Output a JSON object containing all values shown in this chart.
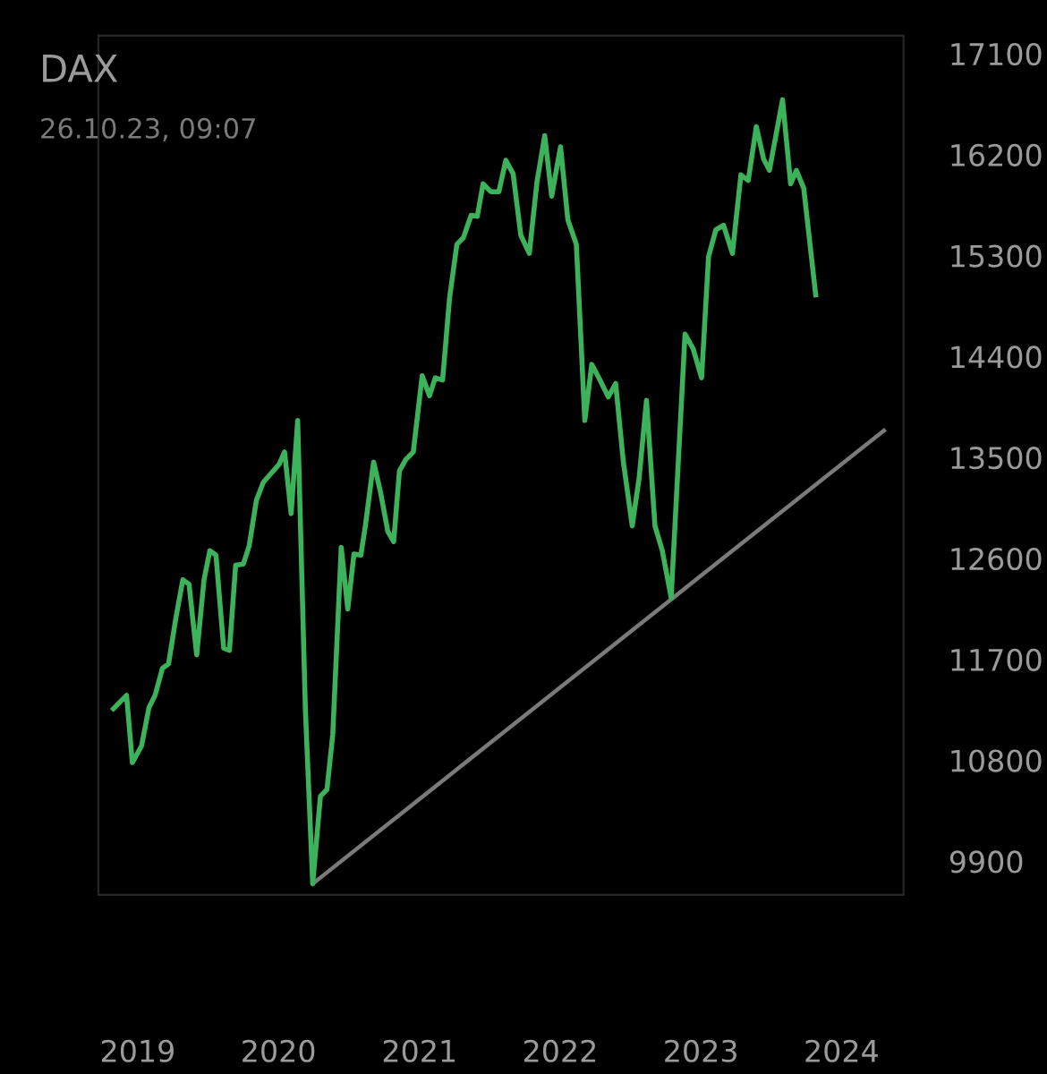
{
  "chart_data": {
    "type": "line",
    "title": "DAX",
    "subtitle": "26.10.23, 09:07",
    "x": [
      "2018-10-30",
      "2018-12-03",
      "2018-12-18",
      "2019-01-11",
      "2019-01-30",
      "2019-02-15",
      "2019-03-06",
      "2019-03-22",
      "2019-04-10",
      "2019-04-28",
      "2019-05-14",
      "2019-06-03",
      "2019-06-22",
      "2019-07-07",
      "2019-07-23",
      "2019-08-12",
      "2019-08-27",
      "2019-09-12",
      "2019-10-02",
      "2019-10-17",
      "2019-11-05",
      "2019-11-23",
      "2020-01-03",
      "2020-01-17",
      "2020-02-03",
      "2020-02-20",
      "2020-03-11",
      "2020-03-30",
      "2020-04-19",
      "2020-05-06",
      "2020-05-21",
      "2020-06-12",
      "2020-06-29",
      "2020-07-15",
      "2020-08-02",
      "2020-08-14",
      "2020-09-04",
      "2020-09-22",
      "2020-10-11",
      "2020-10-26",
      "2020-11-10",
      "2020-11-26",
      "2020-12-16",
      "2021-01-08",
      "2021-01-27",
      "2021-02-11",
      "2021-03-02",
      "2021-03-20",
      "2021-04-08",
      "2021-04-25",
      "2021-05-15",
      "2021-05-31",
      "2021-06-15",
      "2021-07-05",
      "2021-07-26",
      "2021-08-13",
      "2021-09-01",
      "2021-09-21",
      "2021-10-13",
      "2021-11-02",
      "2021-11-22",
      "2021-12-10",
      "2022-01-02",
      "2022-01-21",
      "2022-02-12",
      "2022-03-06",
      "2022-03-24",
      "2022-04-13",
      "2022-05-06",
      "2022-05-25",
      "2022-06-14",
      "2022-07-07",
      "2022-07-25",
      "2022-08-13",
      "2022-09-04",
      "2022-09-23",
      "2022-10-16",
      "2022-11-21",
      "2022-12-12",
      "2023-01-03",
      "2023-01-21",
      "2023-02-09",
      "2023-03-01",
      "2023-03-24",
      "2023-04-15",
      "2023-05-04",
      "2023-05-25",
      "2023-06-13",
      "2023-06-28",
      "2023-08-01",
      "2023-08-22",
      "2023-09-06",
      "2023-09-25",
      "2023-10-26"
    ],
    "series": [
      {
        "color": "#3cb35a",
        "values": [
          11260,
          11380,
          10780,
          10930,
          11270,
          11380,
          11620,
          11660,
          12070,
          12410,
          12370,
          11740,
          12410,
          12670,
          12630,
          11800,
          11780,
          12540,
          12550,
          12710,
          13120,
          13280,
          13440,
          13550,
          13000,
          13830,
          11250,
          9700,
          10480,
          10540,
          11030,
          12700,
          12150,
          12640,
          12630,
          12900,
          13460,
          13190,
          12840,
          12750,
          13380,
          13480,
          13550,
          14230,
          14050,
          14210,
          14190,
          14920,
          15400,
          15460,
          15660,
          15650,
          15940,
          15870,
          15870,
          16150,
          16030,
          15480,
          15320,
          15960,
          16370,
          15830,
          16270,
          15620,
          15400,
          13830,
          14330,
          14200,
          14040,
          14160,
          13460,
          12890,
          13320,
          14010,
          12890,
          12670,
          12250,
          14600,
          14470,
          14210,
          15290,
          15530,
          15570,
          15320,
          16020,
          15970,
          16450,
          16160,
          16060,
          16690,
          15940,
          16060,
          15900,
          14950
        ]
      },
      {
        "type": "line",
        "color": "#7a7a7a",
        "x": [
          "2020-03-30",
          "2024-04-20"
        ],
        "values": [
          9700,
          13740
        ]
      }
    ],
    "xlim": [
      "2018-09-21",
      "2024-06-10"
    ],
    "xticks": [
      {
        "value": "2019-01-01",
        "label": "2019"
      },
      {
        "value": "2020-01-01",
        "label": "2020"
      },
      {
        "value": "2021-01-01",
        "label": "2021"
      },
      {
        "value": "2022-01-01",
        "label": "2022"
      },
      {
        "value": "2023-01-01",
        "label": "2023"
      },
      {
        "value": "2024-01-01",
        "label": "2024"
      }
    ],
    "ylim": [
      9600,
      17260
    ],
    "yticks": [
      9900,
      10800,
      11700,
      12600,
      13500,
      14400,
      15300,
      16200,
      17100
    ],
    "grid": false,
    "marker": "none",
    "line_style": "solid"
  }
}
